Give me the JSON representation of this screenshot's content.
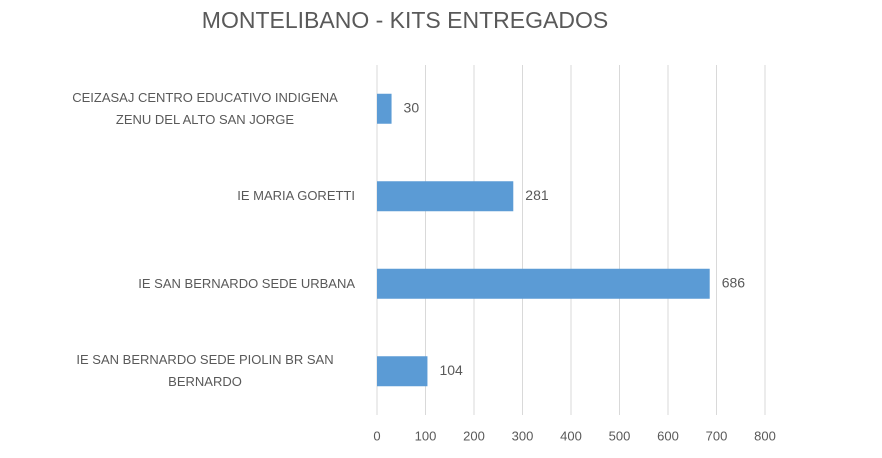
{
  "chart_data": {
    "type": "bar",
    "orientation": "horizontal",
    "title": "MONTELIBANO - KITS ENTREGADOS",
    "categories": [
      "CEIZASAJ CENTRO EDUCATIVO INDIGENA ZENU DEL ALTO SAN JORGE",
      "IE MARIA GORETTI",
      "IE SAN BERNARDO SEDE URBANA",
      "IE SAN BERNARDO SEDE PIOLIN BR SAN BERNARDO"
    ],
    "values": [
      30,
      281,
      686,
      104
    ],
    "color": "#5b9bd5",
    "xlim": [
      0,
      800
    ],
    "xticks": [
      0,
      100,
      200,
      300,
      400,
      500,
      600,
      700,
      800
    ],
    "grid": true
  }
}
